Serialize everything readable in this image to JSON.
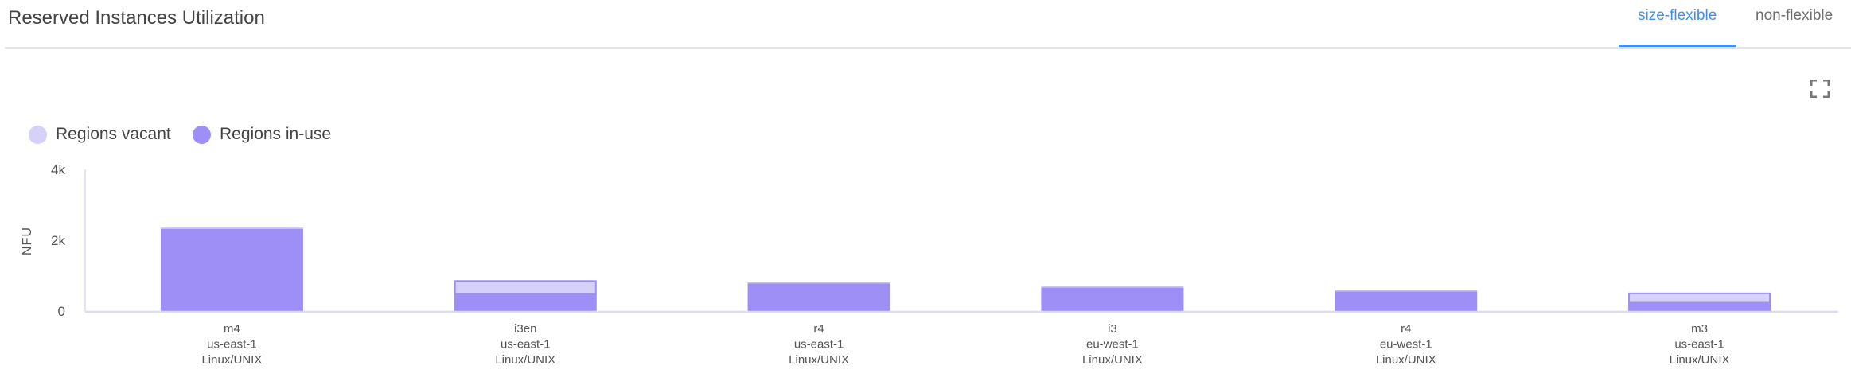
{
  "header": {
    "title": "Reserved Instances Utilization",
    "tabs": [
      {
        "label": "size-flexible",
        "active": true
      },
      {
        "label": "non-flexible",
        "active": false
      }
    ],
    "accent_color": "#3d8ef0",
    "expand_icon": "fullscreen-icon"
  },
  "chart_data": {
    "type": "bar",
    "stacked": true,
    "ylabel": "NFU",
    "ylim": [
      0,
      4000
    ],
    "yticks": [
      {
        "value": 0,
        "label": "0"
      },
      {
        "value": 2000,
        "label": "2k"
      },
      {
        "value": 4000,
        "label": "4k"
      }
    ],
    "grid": false,
    "legend_position": "top-left",
    "categories": [
      [
        "m4",
        "us-east-1",
        "Linux/UNIX"
      ],
      [
        "i3en",
        "us-east-1",
        "Linux/UNIX"
      ],
      [
        "r4",
        "us-east-1",
        "Linux/UNIX"
      ],
      [
        "i3",
        "eu-west-1",
        "Linux/UNIX"
      ],
      [
        "r4",
        "eu-west-1",
        "Linux/UNIX"
      ],
      [
        "m3",
        "us-east-1",
        "Linux/UNIX"
      ]
    ],
    "series": [
      {
        "name": "Regions vacant",
        "color": "#d6d1f8",
        "values": [
          0,
          390,
          0,
          0,
          0,
          285
        ]
      },
      {
        "name": "Regions in-use",
        "color": "#9d8ff5",
        "values": [
          2320,
          480,
          775,
          660,
          555,
          235
        ]
      }
    ]
  }
}
